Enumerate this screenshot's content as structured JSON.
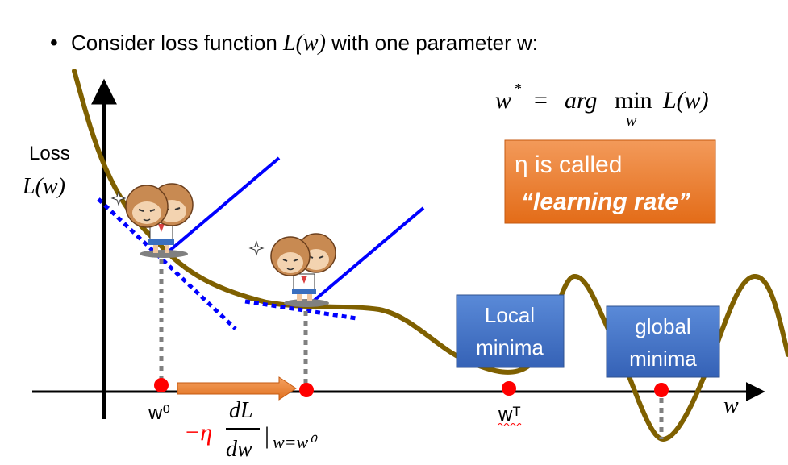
{
  "bullet": {
    "symbol": "•",
    "text_before": "Consider loss function ",
    "math_fn": "L(w)",
    "text_after": " with one parameter w:"
  },
  "objective": {
    "lhs": "w",
    "star": "*",
    "equals": "=",
    "argmin": "arg",
    "min": "min",
    "min_subscript": "w",
    "fn": "L(w)"
  },
  "learning_rate_box": {
    "line1": "η is called",
    "line2": "“learning rate”",
    "color": "#ee7b28"
  },
  "y_axis_label": {
    "line1": "Loss",
    "line2": "L(w)"
  },
  "x_axis_label": "w",
  "local_minima_box": {
    "line1": "Local",
    "line2": "minima",
    "color": "#4575c9"
  },
  "global_minima_box": {
    "line1": "global",
    "line2": "minima",
    "color": "#4575c9"
  },
  "points": {
    "w0": "w⁰",
    "wT": "wᵀ"
  },
  "update_formula": {
    "minus_eta": "−η",
    "numerator": "dL",
    "denominator": "dw",
    "eval_bar": "|",
    "eval_at": "w=w⁰"
  },
  "colors": {
    "curve": "#7f6000",
    "tangent": "#0000ff",
    "point": "#ff0000",
    "arrow": "#ed7d31",
    "dashed": "#808080",
    "axis": "#000000",
    "formula_red": "#ff0000"
  },
  "icons": {
    "character_1": "cartoon-character-icon",
    "character_2": "cartoon-character-icon",
    "sparkle": "sparkle-icon"
  }
}
